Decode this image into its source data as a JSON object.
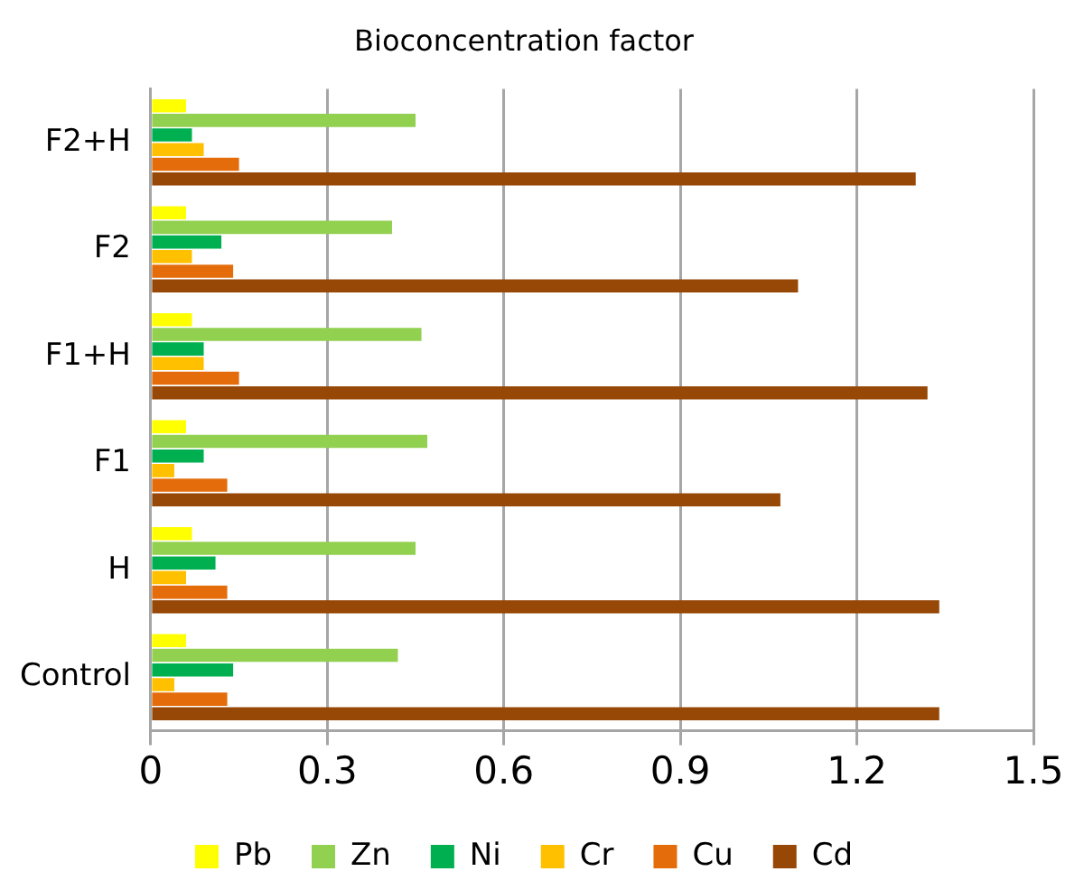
{
  "chart_data": {
    "type": "bar",
    "orientation": "horizontal",
    "title": "Bioconcentration factor",
    "categories": [
      "F2+H",
      "F2",
      "F1+H",
      "F1",
      "H",
      "Control"
    ],
    "series": [
      {
        "name": "Pb",
        "color": "#ffff00",
        "values": [
          0.06,
          0.06,
          0.07,
          0.06,
          0.07,
          0.06
        ]
      },
      {
        "name": "Zn",
        "color": "#92d050",
        "values": [
          0.45,
          0.41,
          0.46,
          0.47,
          0.45,
          0.42
        ]
      },
      {
        "name": "Ni",
        "color": "#00b050",
        "values": [
          0.07,
          0.12,
          0.09,
          0.09,
          0.11,
          0.14
        ]
      },
      {
        "name": "Cr",
        "color": "#ffc000",
        "values": [
          0.09,
          0.07,
          0.09,
          0.04,
          0.06,
          0.04
        ]
      },
      {
        "name": "Cu",
        "color": "#e46c0a",
        "values": [
          0.15,
          0.14,
          0.15,
          0.13,
          0.13,
          0.13
        ]
      },
      {
        "name": "Cd",
        "color": "#974706",
        "values": [
          1.3,
          1.1,
          1.32,
          1.07,
          1.34,
          1.34
        ]
      }
    ],
    "xlim": [
      0,
      1.5
    ],
    "xticks": [
      0,
      0.3,
      0.6,
      0.9,
      1.2,
      1.5
    ],
    "grid": "x",
    "legend": "bottom"
  }
}
